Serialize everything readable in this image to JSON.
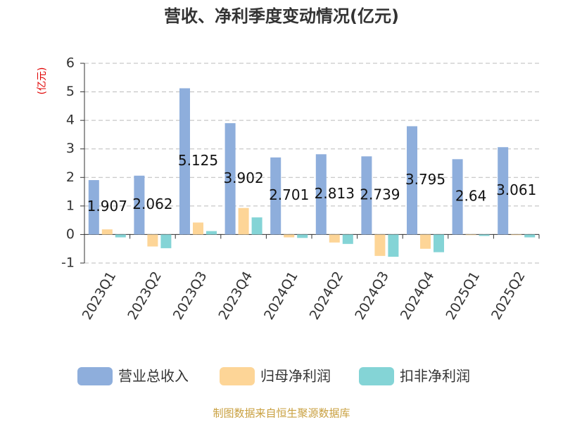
{
  "chart_data": {
    "type": "bar",
    "title": "营收、净利季度变动情况(亿元)",
    "y_label": "(亿元)",
    "categories": [
      "2023Q1",
      "2023Q2",
      "2023Q3",
      "2023Q4",
      "2024Q1",
      "2024Q2",
      "2024Q3",
      "2024Q4",
      "2025Q1",
      "2025Q2"
    ],
    "series": [
      {
        "name": "营业总收入",
        "color": "#8eaedc",
        "values": [
          1.907,
          2.062,
          5.125,
          3.902,
          2.701,
          2.813,
          2.739,
          3.795,
          2.64,
          3.061
        ],
        "labels": true
      },
      {
        "name": "归母净利润",
        "color": "#fdd597",
        "values": [
          0.18,
          -0.42,
          0.42,
          0.93,
          -0.1,
          -0.28,
          -0.75,
          -0.5,
          -0.02,
          -0.02
        ]
      },
      {
        "name": "扣非净利润",
        "color": "#84d4d6",
        "values": [
          -0.1,
          -0.48,
          0.12,
          0.6,
          -0.12,
          -0.33,
          -0.78,
          -0.62,
          -0.05,
          -0.1
        ]
      }
    ],
    "ylim": [
      -1,
      6
    ],
    "yticks": [
      -1,
      0,
      1,
      2,
      3,
      4,
      5,
      6
    ],
    "grid": true,
    "source": "制图数据来自恒生聚源数据库"
  }
}
